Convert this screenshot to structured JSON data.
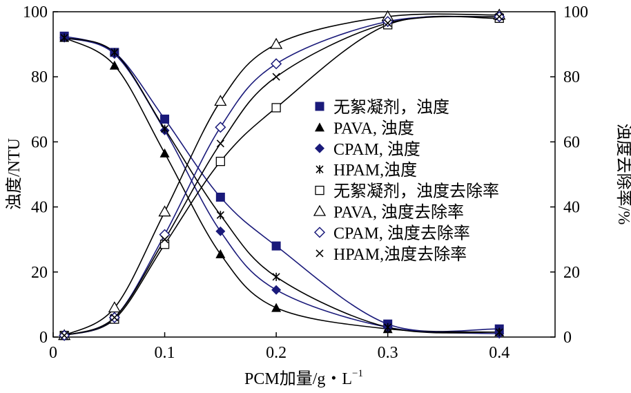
{
  "chart_data": {
    "type": "line",
    "title": "",
    "xlabel": "PCM加量/g・L",
    "xlabel_sup": "−1",
    "ylabel_left": "浊度/NTU",
    "ylabel_right": "浊度去除率/%",
    "xlim": [
      0,
      0.45
    ],
    "ylim_left": [
      0,
      100
    ],
    "ylim_right": [
      0,
      100
    ],
    "x_ticks": [
      {
        "value": 0,
        "label": "0"
      },
      {
        "value": 0.1,
        "label": "0.1"
      },
      {
        "value": 0.2,
        "label": "0.2"
      },
      {
        "value": 0.3,
        "label": "0.3"
      },
      {
        "value": 0.4,
        "label": "0.4"
      }
    ],
    "y_ticks_left": [
      {
        "value": 0,
        "label": "0"
      },
      {
        "value": 20,
        "label": "20"
      },
      {
        "value": 40,
        "label": "40"
      },
      {
        "value": 60,
        "label": "60"
      },
      {
        "value": 80,
        "label": "80"
      },
      {
        "value": 100,
        "label": "100"
      }
    ],
    "y_ticks_right": [
      {
        "value": 0,
        "label": "0"
      },
      {
        "value": 20,
        "label": "20"
      },
      {
        "value": 40,
        "label": "40"
      },
      {
        "value": 60,
        "label": "60"
      },
      {
        "value": 80,
        "label": "80"
      },
      {
        "value": 100,
        "label": "100"
      }
    ],
    "grid": false,
    "legend_position": "center-right",
    "x": [
      0.01,
      0.055,
      0.1,
      0.15,
      0.2,
      0.3,
      0.4
    ],
    "series": [
      {
        "name": "无絮凝剂，浊度",
        "axis": "left",
        "marker": "square-filled",
        "color": "#1a1a7a",
        "values": [
          92.5,
          87.5,
          67,
          43,
          28,
          4,
          2.5
        ]
      },
      {
        "name": "PAVA, 浊度",
        "axis": "left",
        "marker": "triangle-filled",
        "color": "#000000",
        "values": [
          92,
          83.5,
          56.5,
          25.5,
          9,
          2.5,
          1.5
        ]
      },
      {
        "name": "CPAM, 浊度",
        "axis": "left",
        "marker": "diamond-filled",
        "color": "#1a1a7a",
        "values": [
          92,
          87,
          63.5,
          32.5,
          14.5,
          3,
          1
        ]
      },
      {
        "name": "HPAM,浊度",
        "axis": "left",
        "marker": "asterisk",
        "color": "#000000",
        "values": [
          92,
          87.5,
          64,
          37.5,
          18.5,
          3,
          1.5
        ]
      },
      {
        "name": "无絮凝剂，浊度去除率",
        "axis": "right",
        "marker": "square-open",
        "color": "#000000",
        "values": [
          0.5,
          5.5,
          28.5,
          54,
          70.5,
          96,
          98
        ]
      },
      {
        "name": "PAVA, 浊度去除率",
        "axis": "right",
        "marker": "triangle-open",
        "color": "#000000",
        "values": [
          0.5,
          9,
          38.5,
          72.5,
          90,
          98.5,
          99
        ]
      },
      {
        "name": "CPAM, 浊度去除率",
        "axis": "right",
        "marker": "diamond-open",
        "color": "#1a1a7a",
        "values": [
          0.5,
          6,
          31.5,
          64.5,
          84,
          97,
          98.5
        ]
      },
      {
        "name": "HPAM,浊度去除率",
        "axis": "right",
        "marker": "x",
        "color": "#000000",
        "values": [
          0.5,
          6,
          30,
          59.5,
          80,
          96.5,
          98.5
        ]
      }
    ]
  }
}
